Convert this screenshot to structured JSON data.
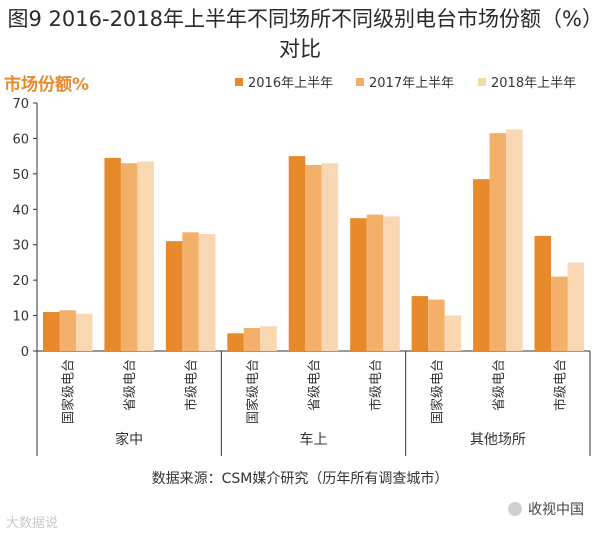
{
  "figure": {
    "title": "图9 2016-2018年上半年不同场所不同级别电台市场份额（%）对比",
    "source": "数据来源：CSM媒介研究（历年所有调查城市）",
    "brand": "收视中国",
    "watermark": "大数据说"
  },
  "colors": {
    "s2016": "#E8892C",
    "s2017": "#F3B06B",
    "s2018": "#F8D7B2",
    "ylabel": "#E8892C",
    "axis": "#333333"
  },
  "chart_data": {
    "type": "bar",
    "ylabel": "市场份额%",
    "ylim": [
      0,
      70
    ],
    "yticks": [
      0,
      10,
      20,
      30,
      40,
      50,
      60,
      70
    ],
    "legend_position": "top-right",
    "groups": [
      {
        "name": "家中",
        "categories": [
          "国家级电台",
          "省级电台",
          "市级电台"
        ]
      },
      {
        "name": "车上",
        "categories": [
          "国家级电台",
          "省级电台",
          "市级电台"
        ]
      },
      {
        "name": "其他场所",
        "categories": [
          "国家级电台",
          "省级电台",
          "市级电台"
        ]
      }
    ],
    "series": [
      {
        "name": "2016年上半年",
        "color": "#E8892C",
        "values": [
          11,
          54.5,
          31,
          5,
          55,
          37.5,
          15.5,
          48.5,
          32.5
        ]
      },
      {
        "name": "2017年上半年",
        "color": "#F3B06B",
        "values": [
          11.5,
          53,
          33.5,
          6.5,
          52.5,
          38.5,
          14.5,
          61.5,
          21
        ]
      },
      {
        "name": "2018年上半年",
        "color": "#F8D7B2",
        "values": [
          10.5,
          53.5,
          33,
          7,
          53,
          38,
          10,
          62.5,
          25
        ]
      }
    ]
  }
}
